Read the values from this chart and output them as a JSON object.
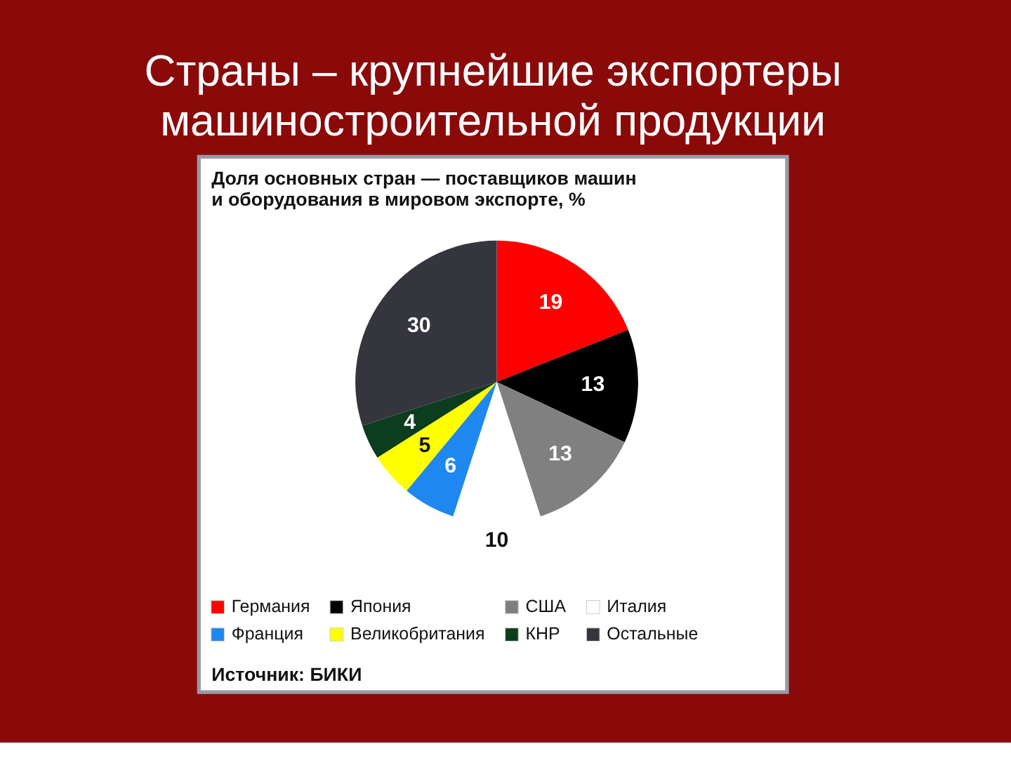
{
  "chart_data": {
    "type": "pie",
    "title": "Страны – крупнейшие экспортеры машиностроительной продукции",
    "subtitle": "Доля основных стран — поставщиков машин и оборудования в мировом экспорте, %",
    "annotations": [
      "Источник: БИКИ"
    ],
    "categories": [
      "Германия",
      "Япония",
      "США",
      "Италия",
      "Франция",
      "Великобритания",
      "КНР",
      "Остальные"
    ],
    "values": [
      19,
      13,
      13,
      10,
      6,
      5,
      4,
      30
    ],
    "colors": [
      "#ff0000",
      "#000000",
      "#808080",
      "#ffffff",
      "#1e88f0",
      "#ffff00",
      "#0b3d1e",
      "#35363d"
    ],
    "data_labels": true,
    "legend": "bottom"
  }
}
